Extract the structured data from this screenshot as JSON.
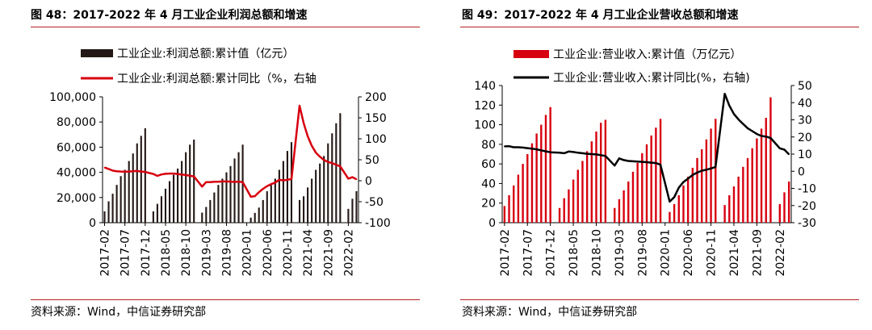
{
  "chart_data": [
    {
      "type": "bar",
      "title": "图 48：2017-2022 年 4 月工业企业利润总额和增速",
      "source": "资料来源：Wind，中信证券研究部",
      "legend": [
        "工业企业:利润总额:累计值（亿元）",
        "工业企业:利润总额:累计同比（%，右轴"
      ],
      "legend_placement": "top-center",
      "x_tick_labels": [
        "2017-02",
        "2017-07",
        "2017-12",
        "2018-05",
        "2018-10",
        "2019-03",
        "2019-08",
        "2020-01",
        "2020-06",
        "2020-11",
        "2021-04",
        "2021-09",
        "2022-02"
      ],
      "y_left": {
        "range": [
          0,
          100000
        ],
        "ticks": [
          "0",
          "20,000",
          "40,000",
          "60,000",
          "80,000",
          "100,000"
        ]
      },
      "y_right": {
        "range": [
          -100,
          200
        ],
        "ticks": [
          "-100",
          "-50",
          "0",
          "50",
          "100",
          "150",
          "200"
        ]
      },
      "series": [
        {
          "name": "工业企业:利润总额:累计值（亿元）",
          "kind": "bar",
          "color": "#231815",
          "axis": "left",
          "x": [
            "2017-02",
            "2017-03",
            "2017-04",
            "2017-05",
            "2017-06",
            "2017-07",
            "2017-08",
            "2017-09",
            "2017-10",
            "2017-11",
            "2017-12",
            "2018-02",
            "2018-03",
            "2018-04",
            "2018-05",
            "2018-06",
            "2018-07",
            "2018-08",
            "2018-09",
            "2018-10",
            "2018-11",
            "2018-12",
            "2019-02",
            "2019-03",
            "2019-04",
            "2019-05",
            "2019-06",
            "2019-07",
            "2019-08",
            "2019-09",
            "2019-10",
            "2019-11",
            "2019-12",
            "2020-02",
            "2020-03",
            "2020-04",
            "2020-05",
            "2020-06",
            "2020-07",
            "2020-08",
            "2020-09",
            "2020-10",
            "2020-11",
            "2020-12",
            "2021-02",
            "2021-03",
            "2021-04",
            "2021-05",
            "2021-06",
            "2021-07",
            "2021-08",
            "2021-09",
            "2021-10",
            "2021-11",
            "2021-12",
            "2022-02",
            "2022-03",
            "2022-04"
          ],
          "values": [
            9000,
            17000,
            23000,
            30000,
            37000,
            42000,
            49000,
            55000,
            63000,
            69000,
            75000,
            9000,
            15000,
            21000,
            27000,
            33000,
            38000,
            43000,
            49000,
            56000,
            62000,
            66000,
            8000,
            12500,
            18000,
            24000,
            30000,
            35000,
            40000,
            45000,
            51000,
            56000,
            62000,
            4000,
            7800,
            12000,
            18000,
            25000,
            30000,
            35000,
            42000,
            49000,
            57000,
            64000,
            18000,
            21000,
            28000,
            35000,
            42000,
            47000,
            53000,
            63000,
            71000,
            79000,
            87000,
            11000,
            19000,
            25000
          ]
        },
        {
          "name": "工业企业:利润总额:累计同比（%，右轴",
          "kind": "line",
          "color": "#d7000f",
          "axis": "right",
          "x": [
            "2017-02",
            "2017-03",
            "2017-04",
            "2017-05",
            "2017-06",
            "2017-07",
            "2017-08",
            "2017-09",
            "2017-10",
            "2017-11",
            "2017-12",
            "2018-02",
            "2018-03",
            "2018-04",
            "2018-05",
            "2018-06",
            "2018-07",
            "2018-08",
            "2018-09",
            "2018-10",
            "2018-11",
            "2018-12",
            "2019-02",
            "2019-03",
            "2019-04",
            "2019-05",
            "2019-06",
            "2019-07",
            "2019-08",
            "2019-09",
            "2019-10",
            "2019-11",
            "2019-12",
            "2020-02",
            "2020-03",
            "2020-04",
            "2020-05",
            "2020-06",
            "2020-07",
            "2020-08",
            "2020-09",
            "2020-10",
            "2020-11",
            "2020-12",
            "2021-02",
            "2021-03",
            "2021-04",
            "2021-05",
            "2021-06",
            "2021-07",
            "2021-08",
            "2021-09",
            "2021-10",
            "2021-11",
            "2021-12",
            "2022-02",
            "2022-03",
            "2022-04"
          ],
          "values": [
            31.5,
            28,
            24,
            22.7,
            22,
            21.6,
            21.6,
            22.8,
            23.3,
            21.9,
            21,
            16.1,
            11.6,
            15,
            16.5,
            17.2,
            17.1,
            16.2,
            14.7,
            13.6,
            11.8,
            10.3,
            -14,
            -3.3,
            -3.4,
            -2.3,
            -2.4,
            -1.7,
            -1.7,
            -2.1,
            -2.9,
            -2.1,
            -3.3,
            -38.3,
            -36.7,
            -27.4,
            -19.3,
            -12.8,
            -8.1,
            -4.4,
            2.4,
            0.7,
            2.4,
            4.1,
            178.9,
            137.3,
            106,
            83.4,
            66.9,
            57.3,
            49.5,
            44.7,
            42.2,
            38,
            34.3,
            5,
            8.5,
            3.5
          ]
        }
      ]
    },
    {
      "type": "bar",
      "title": "图 49：2017-2022 年 4 月工业企业营收总额和增速",
      "source": "资料来源：Wind，中信证券研究部",
      "legend": [
        "工业企业:营业收入:累计值（万亿元）",
        "工业企业:营业收入:累计同比(%，右轴)"
      ],
      "legend_placement": "top-center",
      "x_tick_labels": [
        "2017-02",
        "2017-07",
        "2017-12",
        "2018-05",
        "2018-10",
        "2019-03",
        "2019-08",
        "2020-01",
        "2020-06",
        "2020-11",
        "2021-04",
        "2021-09",
        "2022-02"
      ],
      "y_left": {
        "range": [
          0,
          140
        ],
        "ticks": [
          "0",
          "20",
          "40",
          "60",
          "80",
          "100",
          "120",
          "140"
        ]
      },
      "y_right": {
        "range": [
          -30,
          50
        ],
        "ticks": [
          "-30",
          "-20",
          "-10",
          "0",
          "10",
          "20",
          "30",
          "40",
          "50"
        ]
      },
      "series": [
        {
          "name": "工业企业:营业收入:累计值（万亿元）",
          "kind": "bar",
          "color": "#d7000f",
          "axis": "left",
          "x": [
            "2017-02",
            "2017-03",
            "2017-04",
            "2017-05",
            "2017-06",
            "2017-07",
            "2017-08",
            "2017-09",
            "2017-10",
            "2017-11",
            "2017-12",
            "2018-02",
            "2018-03",
            "2018-04",
            "2018-05",
            "2018-06",
            "2018-07",
            "2018-08",
            "2018-09",
            "2018-10",
            "2018-11",
            "2018-12",
            "2019-02",
            "2019-03",
            "2019-04",
            "2019-05",
            "2019-06",
            "2019-07",
            "2019-08",
            "2019-09",
            "2019-10",
            "2019-11",
            "2019-12",
            "2020-02",
            "2020-03",
            "2020-04",
            "2020-05",
            "2020-06",
            "2020-07",
            "2020-08",
            "2020-09",
            "2020-10",
            "2020-11",
            "2020-12",
            "2021-02",
            "2021-03",
            "2021-04",
            "2021-05",
            "2021-06",
            "2021-07",
            "2021-08",
            "2021-09",
            "2021-10",
            "2021-11",
            "2021-12",
            "2022-02",
            "2022-03",
            "2022-04"
          ],
          "values": [
            17,
            28,
            38,
            49,
            60,
            70,
            81,
            91,
            100,
            110,
            118,
            15,
            25,
            34,
            44,
            54,
            63,
            73,
            83,
            93,
            102,
            105,
            15,
            24,
            33,
            42,
            52,
            61,
            71,
            80,
            89,
            97,
            106,
            11,
            19,
            28,
            38,
            47,
            56,
            66,
            75,
            85,
            96,
            106,
            18,
            28,
            37,
            47,
            57,
            66,
            76,
            86,
            96,
            107,
            128,
            19,
            31,
            42
          ]
        },
        {
          "name": "工业企业:营业收入:累计同比(%，右轴)",
          "kind": "line",
          "color": "#000000",
          "axis": "right",
          "x": [
            "2017-02",
            "2017-03",
            "2017-04",
            "2017-05",
            "2017-06",
            "2017-07",
            "2017-08",
            "2017-09",
            "2017-10",
            "2017-11",
            "2017-12",
            "2018-02",
            "2018-03",
            "2018-04",
            "2018-05",
            "2018-06",
            "2018-07",
            "2018-08",
            "2018-09",
            "2018-10",
            "2018-11",
            "2018-12",
            "2019-02",
            "2019-03",
            "2019-04",
            "2019-05",
            "2019-06",
            "2019-07",
            "2019-08",
            "2019-09",
            "2019-10",
            "2019-11",
            "2019-12",
            "2020-02",
            "2020-03",
            "2020-04",
            "2020-05",
            "2020-06",
            "2020-07",
            "2020-08",
            "2020-09",
            "2020-10",
            "2020-11",
            "2020-12",
            "2021-02",
            "2021-03",
            "2021-04",
            "2021-05",
            "2021-06",
            "2021-07",
            "2021-08",
            "2021-09",
            "2021-10",
            "2021-11",
            "2021-12",
            "2022-02",
            "2022-03",
            "2022-04"
          ],
          "values": [
            14.5,
            14.6,
            14,
            14,
            13.8,
            13.5,
            13.2,
            12.8,
            12.2,
            11.6,
            11.1,
            10.8,
            10.5,
            11.5,
            11.2,
            10.8,
            10.5,
            10.2,
            10,
            9.8,
            9.4,
            8.9,
            3.3,
            7.5,
            6.5,
            6,
            5.8,
            5.6,
            5.5,
            5.3,
            5,
            4.8,
            3.8,
            -17.7,
            -15.1,
            -9.5,
            -6.3,
            -4.3,
            -2.2,
            -0.8,
            0.3,
            0.9,
            1.6,
            2.5,
            45.2,
            38.3,
            33.4,
            30.2,
            27.6,
            25.1,
            23.4,
            21.7,
            20.6,
            20.2,
            19.4,
            13.4,
            12.6,
            9.9
          ]
        }
      ]
    }
  ]
}
